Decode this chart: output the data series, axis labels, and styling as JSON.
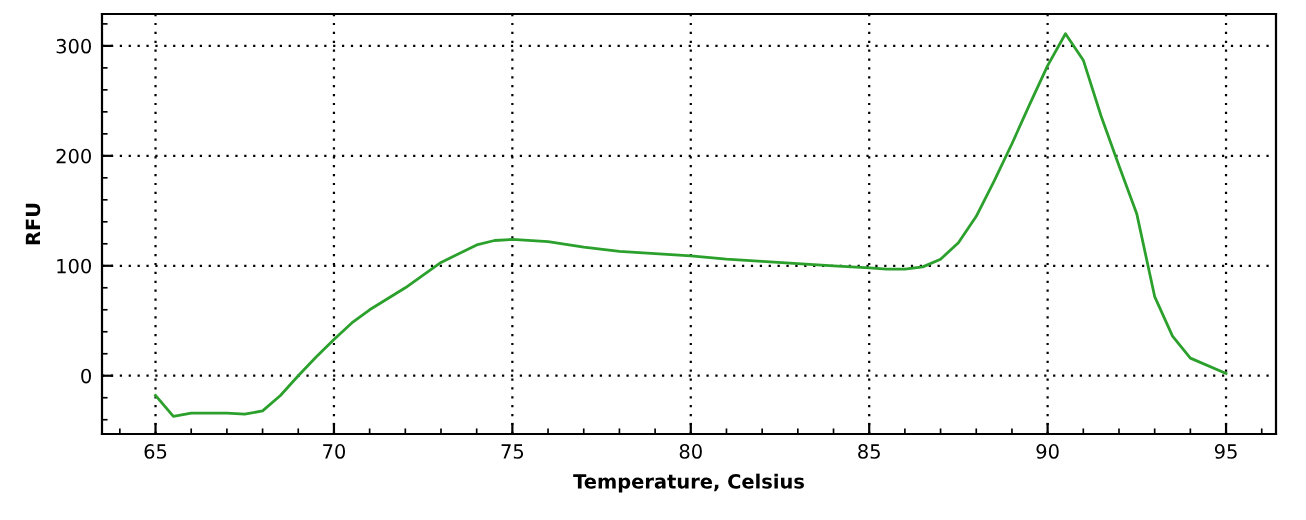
{
  "chart_data": {
    "type": "line",
    "xlabel": "Temperature, Celsius",
    "ylabel": "RFU",
    "x": [
      65,
      65.5,
      66,
      67,
      67.5,
      68,
      68.5,
      69,
      69.5,
      70,
      70.5,
      71,
      72,
      73,
      74,
      74.5,
      75,
      76,
      77,
      78,
      79,
      80,
      81,
      82,
      83,
      84,
      85,
      85.5,
      86,
      86.5,
      87,
      87.5,
      88,
      88.5,
      89,
      89.5,
      90,
      90.5,
      91,
      91.5,
      92,
      92.5,
      93,
      93.5,
      94,
      95
    ],
    "series": [
      {
        "color": "#2ca02c",
        "values": [
          -18,
          -37,
          -34,
          -34,
          -35,
          -32,
          -18,
          0,
          17,
          33,
          48,
          60,
          80,
          103,
          119,
          123,
          124,
          122,
          117,
          113,
          111,
          109,
          106,
          104,
          102,
          100,
          98,
          97,
          97,
          99,
          106,
          121,
          145,
          177,
          211,
          247,
          282,
          311,
          287,
          236,
          191,
          147,
          72,
          36,
          16,
          2
        ]
      }
    ],
    "xlim": [
      63.5,
      96.4
    ],
    "ylim": [
      -53,
      329
    ],
    "xticks": [
      65,
      70,
      75,
      80,
      85,
      90,
      95
    ],
    "yticks": [
      0,
      100,
      200,
      300
    ],
    "grid": true,
    "line_style": "solid",
    "marker": "none"
  }
}
